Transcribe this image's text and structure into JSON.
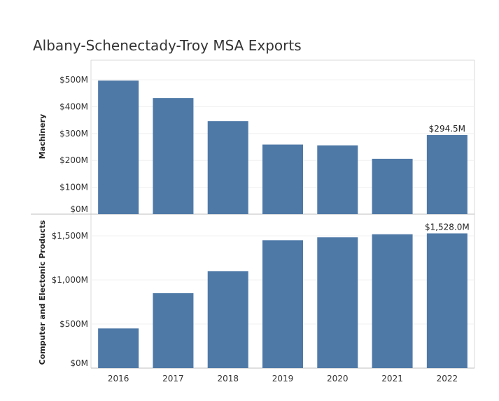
{
  "title": "Albany-Schenectady-Troy MSA Exports",
  "chart_data": [
    {
      "type": "bar",
      "title": "",
      "ylabel": "Machinery",
      "categories": [
        "2016",
        "2017",
        "2018",
        "2019",
        "2020",
        "2021",
        "2022"
      ],
      "values": [
        497,
        432,
        346,
        259,
        256,
        206,
        294.5
      ],
      "ylim": [
        0,
        500
      ],
      "yticks": [
        0,
        100,
        200,
        300,
        400,
        500
      ],
      "ytick_labels": [
        "$0M",
        "$100M",
        "$200M",
        "$300M",
        "$400M",
        "$500M"
      ],
      "data_labels": [
        {
          "index": 6,
          "text": "$294.5M"
        }
      ],
      "color": "#4e79a7"
    },
    {
      "type": "bar",
      "title": "",
      "ylabel": "Computer and Electonic Products",
      "categories": [
        "2016",
        "2017",
        "2018",
        "2019",
        "2020",
        "2021",
        "2022"
      ],
      "values": [
        450,
        850,
        1100,
        1450,
        1483,
        1518,
        1528
      ],
      "ylim": [
        0,
        1500
      ],
      "yticks": [
        0,
        500,
        1000,
        1500
      ],
      "ytick_labels": [
        "$0M",
        "$500M",
        "$1,000M",
        "$1,500M"
      ],
      "data_labels": [
        {
          "index": 6,
          "text": "$1,528.0M"
        }
      ],
      "color": "#4e79a7"
    }
  ]
}
